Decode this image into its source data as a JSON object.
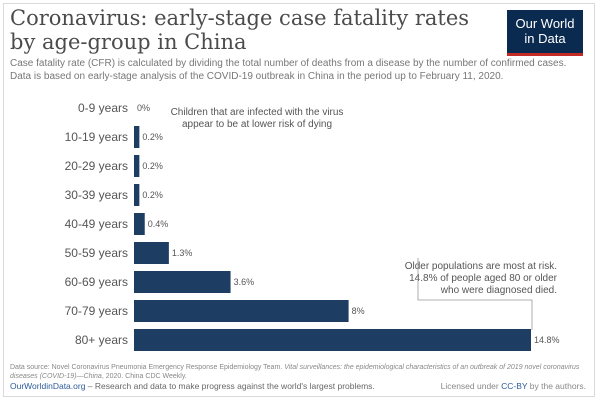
{
  "header": {
    "title": "Coronavirus: early-stage case fatality rates by age-group in China",
    "subtitle_line1": "Case fatality rate (CFR) is calculated by dividing the total number of deaths from a disease by the number of confirmed cases.",
    "subtitle_line2": "Data is based on early-stage analysis of the COVID-19 outbreak in China in the period up to February 11, 2020."
  },
  "logo": {
    "line1": "Our World",
    "line2": "in Data"
  },
  "annotations": {
    "young_line1": "Children that are infected with the virus",
    "young_line2": "appear to be at lower risk of dying",
    "old_line1": "Older populations are most at risk.",
    "old_line2": "14.8% of people aged 80 or older",
    "old_line3": "who were diagnosed died."
  },
  "footer": {
    "source_prefix": "Data source: Novel Coronavirus Pneumonia Emergency Response Epidemiology Team.",
    "source_italic": "Vital surveillances: the epidemiological characteristics of an outbreak of 2019 novel coronavirus",
    "source_line2_italic": "diseases (COVID-19)—China",
    "source_line2_rest": ", 2020. China CDC Weekly.",
    "owid_link": "OurWorldinData.org",
    "owid_rest": " – Research and data to make progress against the world's largest problems.",
    "license_prefix": "Licensed under ",
    "license_link": "CC-BY",
    "license_suffix": " by the authors."
  },
  "colors": {
    "bar": "#1d3d63",
    "title": "#4b4b4b",
    "logo_bg": "#0b2a50",
    "logo_accent": "#c22b26"
  },
  "chart_data": {
    "type": "bar",
    "orientation": "horizontal",
    "categories": [
      "0-9 years",
      "10-19 years",
      "20-29 years",
      "30-39 years",
      "40-49 years",
      "50-59 years",
      "60-69 years",
      "70-79 years",
      "80+ years"
    ],
    "values": [
      0,
      0.2,
      0.2,
      0.2,
      0.4,
      1.3,
      3.6,
      8,
      14.8
    ],
    "value_labels": [
      "0%",
      "0.2%",
      "0.2%",
      "0.2%",
      "0.4%",
      "1.3%",
      "3.6%",
      "8%",
      "14.8%"
    ],
    "unit": "%",
    "xlim": [
      0,
      14.8
    ],
    "grid": false
  }
}
